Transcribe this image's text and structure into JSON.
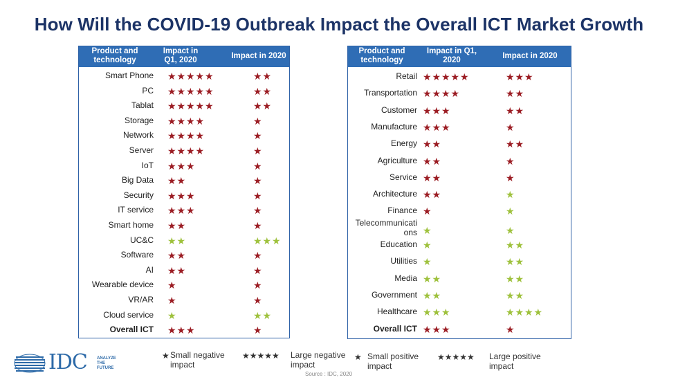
{
  "title": "How Will the COVID-19 Outbreak Impact the Overall ICT Market Growth",
  "tables": [
    {
      "headers": [
        "Product and technology",
        "Impact in Q1, 2020",
        "Impact in 2020"
      ],
      "rows": [
        {
          "label": "Smart Phone",
          "q1": 5,
          "q1_sign": "negative",
          "y2020": 2,
          "y2020_sign": "negative"
        },
        {
          "label": "PC",
          "q1": 5,
          "q1_sign": "negative",
          "y2020": 2,
          "y2020_sign": "negative"
        },
        {
          "label": "Tablat",
          "q1": 5,
          "q1_sign": "negative",
          "y2020": 2,
          "y2020_sign": "negative"
        },
        {
          "label": "Storage",
          "q1": 4,
          "q1_sign": "negative",
          "y2020": 1,
          "y2020_sign": "negative"
        },
        {
          "label": "Network",
          "q1": 4,
          "q1_sign": "negative",
          "y2020": 1,
          "y2020_sign": "negative"
        },
        {
          "label": "Server",
          "q1": 4,
          "q1_sign": "negative",
          "y2020": 1,
          "y2020_sign": "negative"
        },
        {
          "label": "IoT",
          "q1": 3,
          "q1_sign": "negative",
          "y2020": 1,
          "y2020_sign": "negative"
        },
        {
          "label": "Big Data",
          "q1": 2,
          "q1_sign": "negative",
          "y2020": 1,
          "y2020_sign": "negative"
        },
        {
          "label": "Security",
          "q1": 3,
          "q1_sign": "negative",
          "y2020": 1,
          "y2020_sign": "negative"
        },
        {
          "label": "IT service",
          "q1": 3,
          "q1_sign": "negative",
          "y2020": 1,
          "y2020_sign": "negative"
        },
        {
          "label": "Smart home",
          "q1": 2,
          "q1_sign": "negative",
          "y2020": 1,
          "y2020_sign": "negative"
        },
        {
          "label": "UC&C",
          "q1": 2,
          "q1_sign": "positive",
          "y2020": 3,
          "y2020_sign": "positive"
        },
        {
          "label": "Software",
          "q1": 2,
          "q1_sign": "negative",
          "y2020": 1,
          "y2020_sign": "negative"
        },
        {
          "label": "AI",
          "q1": 2,
          "q1_sign": "negative",
          "y2020": 1,
          "y2020_sign": "negative"
        },
        {
          "label": "Wearable device",
          "q1": 1,
          "q1_sign": "negative",
          "y2020": 1,
          "y2020_sign": "negative"
        },
        {
          "label": "VR/AR",
          "q1": 1,
          "q1_sign": "negative",
          "y2020": 1,
          "y2020_sign": "negative"
        },
        {
          "label": "Cloud service",
          "q1": 1,
          "q1_sign": "positive",
          "y2020": 2,
          "y2020_sign": "positive"
        },
        {
          "label": "Overall ICT",
          "q1": 3,
          "q1_sign": "negative",
          "y2020": 1,
          "y2020_sign": "negative",
          "bold": true
        }
      ]
    },
    {
      "headers": [
        "Product and technology",
        "Impact in Q1, 2020",
        "Impact in 2020"
      ],
      "rows": [
        {
          "label": "Retail",
          "q1": 5,
          "q1_sign": "negative",
          "y2020": 3,
          "y2020_sign": "negative"
        },
        {
          "label": "Transportation",
          "q1": 4,
          "q1_sign": "negative",
          "y2020": 2,
          "y2020_sign": "negative"
        },
        {
          "label": "Customer",
          "q1": 3,
          "q1_sign": "negative",
          "y2020": 2,
          "y2020_sign": "negative"
        },
        {
          "label": "Manufacture",
          "q1": 3,
          "q1_sign": "negative",
          "y2020": 1,
          "y2020_sign": "negative"
        },
        {
          "label": "Energy",
          "q1": 2,
          "q1_sign": "negative",
          "y2020": 2,
          "y2020_sign": "negative"
        },
        {
          "label": "Agriculture",
          "q1": 2,
          "q1_sign": "negative",
          "y2020": 1,
          "y2020_sign": "negative"
        },
        {
          "label": "Service",
          "q1": 2,
          "q1_sign": "negative",
          "y2020": 1,
          "y2020_sign": "negative"
        },
        {
          "label": "Architecture",
          "q1": 2,
          "q1_sign": "negative",
          "y2020": 1,
          "y2020_sign": "positive"
        },
        {
          "label": "Finance",
          "q1": 1,
          "q1_sign": "negative",
          "y2020": 1,
          "y2020_sign": "positive"
        },
        {
          "label": "Telecommunicati ons",
          "q1": 1,
          "q1_sign": "positive",
          "y2020": 1,
          "y2020_sign": "positive"
        },
        {
          "label": "Education",
          "q1": 1,
          "q1_sign": "positive",
          "y2020": 2,
          "y2020_sign": "positive"
        },
        {
          "label": "Utilities",
          "q1": 1,
          "q1_sign": "positive",
          "y2020": 2,
          "y2020_sign": "positive"
        },
        {
          "label": "Media",
          "q1": 2,
          "q1_sign": "positive",
          "y2020": 2,
          "y2020_sign": "positive"
        },
        {
          "label": "Government",
          "q1": 2,
          "q1_sign": "positive",
          "y2020": 2,
          "y2020_sign": "positive"
        },
        {
          "label": "Healthcare",
          "q1": 3,
          "q1_sign": "positive",
          "y2020": 4,
          "y2020_sign": "positive"
        },
        {
          "label": "Overall ICT",
          "q1": 3,
          "q1_sign": "negative",
          "y2020": 1,
          "y2020_sign": "negative",
          "bold": true
        }
      ]
    }
  ],
  "legend": [
    {
      "stars": 1,
      "sign": "negative",
      "label": "Small negative impact"
    },
    {
      "stars": 5,
      "sign": "negative",
      "label": "Large negative impact"
    },
    {
      "stars": 1,
      "sign": "positive",
      "label": "Small positive impact"
    },
    {
      "stars": 5,
      "sign": "positive",
      "label": "Large positive impact"
    }
  ],
  "logo": {
    "text": "IDC",
    "tagline": "ANALYZE THE FUTURE"
  },
  "source": "Source : IDC, 2020",
  "colors": {
    "negative": "#9b1c23",
    "positive": "#9ec13c",
    "header": "#2f6db5",
    "title": "#1c3366"
  },
  "chart_data": [
    {
      "type": "table",
      "title": "How Will the COVID-19 Outbreak Impact the Overall ICT Market Growth",
      "columns": [
        "Product and technology",
        "Impact in Q1, 2020",
        "Impact in 2020"
      ],
      "note": "star counts; negative = red stars, positive = green stars"
    }
  ]
}
